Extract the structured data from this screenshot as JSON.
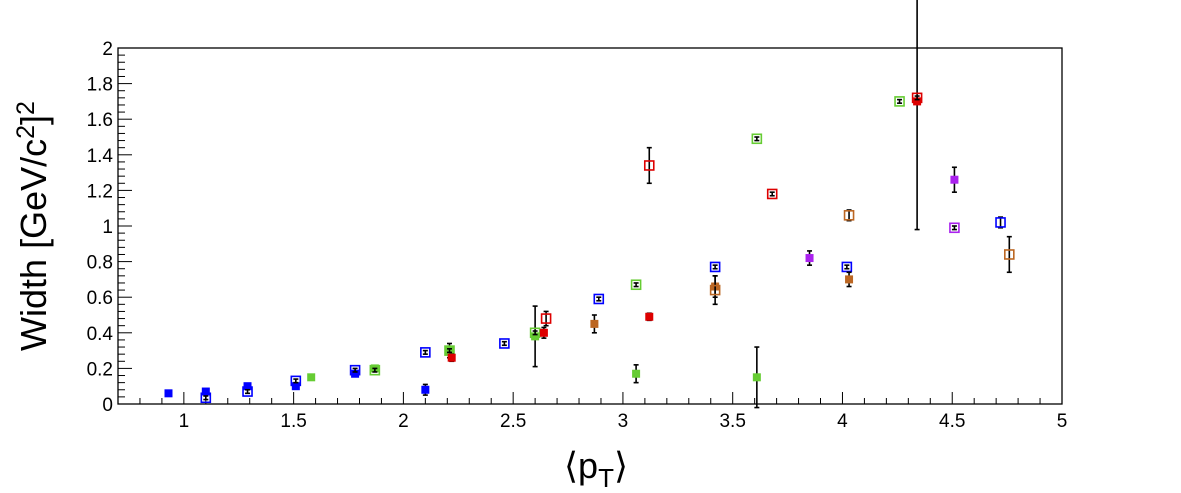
{
  "chart_data": {
    "type": "scatter",
    "xlabel": "⟨p_T⟩",
    "ylabel": "Width [GeV/c^2]^2",
    "xlim": [
      0.7,
      5
    ],
    "ylim": [
      0,
      2
    ],
    "x_ticks": [
      1,
      1.5,
      2,
      2.5,
      3,
      3.5,
      4,
      4.5,
      5
    ],
    "x_tick_labels": [
      "1",
      "1.5",
      "2",
      "2.5",
      "3",
      "3.5",
      "4",
      "4.5",
      "5"
    ],
    "y_ticks": [
      0,
      0.2,
      0.4,
      0.6,
      0.8,
      1,
      1.2,
      1.4,
      1.6,
      1.8,
      2
    ],
    "y_tick_labels": [
      "0",
      "0.2",
      "0.4",
      "0.6",
      "0.8",
      "1",
      "1.2",
      "1.4",
      "1.6",
      "1.8",
      "2"
    ],
    "grid": false,
    "series": [
      {
        "color": "#0000ff",
        "marker": "filled-square",
        "points": [
          {
            "x": 0.93,
            "y": 0.06,
            "err": 0.01
          },
          {
            "x": 1.1,
            "y": 0.07,
            "err": 0.01
          },
          {
            "x": 1.29,
            "y": 0.1,
            "err": 0.01
          },
          {
            "x": 1.51,
            "y": 0.1,
            "err": 0.01
          },
          {
            "x": 1.78,
            "y": 0.17,
            "err": 0.01
          },
          {
            "x": 2.1,
            "y": 0.08,
            "err": 0.03
          }
        ]
      },
      {
        "color": "#0000ff",
        "marker": "open-square",
        "points": [
          {
            "x": 1.1,
            "y": 0.035,
            "err": 0.01
          },
          {
            "x": 1.29,
            "y": 0.07,
            "err": 0.01
          },
          {
            "x": 1.51,
            "y": 0.13,
            "err": 0.01
          },
          {
            "x": 1.78,
            "y": 0.19,
            "err": 0.01
          },
          {
            "x": 2.1,
            "y": 0.29,
            "err": 0.01
          },
          {
            "x": 2.46,
            "y": 0.34,
            "err": 0.01
          },
          {
            "x": 2.89,
            "y": 0.59,
            "err": 0.01
          },
          {
            "x": 3.42,
            "y": 0.77,
            "err": 0.01
          },
          {
            "x": 4.02,
            "y": 0.77,
            "err": 0.01
          },
          {
            "x": 4.72,
            "y": 1.02,
            "err": 0.03
          }
        ]
      },
      {
        "color": "#66cc33",
        "marker": "filled-square",
        "points": [
          {
            "x": 1.58,
            "y": 0.15,
            "err": 0.01
          },
          {
            "x": 1.87,
            "y": 0.2,
            "err": 0.01
          },
          {
            "x": 2.21,
            "y": 0.3,
            "err": 0.04
          },
          {
            "x": 2.6,
            "y": 0.38,
            "err": 0.17
          },
          {
            "x": 3.06,
            "y": 0.17,
            "err": 0.05
          },
          {
            "x": 3.61,
            "y": 0.15,
            "err": 0.17
          }
        ]
      },
      {
        "color": "#66cc33",
        "marker": "open-square",
        "points": [
          {
            "x": 1.87,
            "y": 0.19,
            "err": 0.01
          },
          {
            "x": 2.21,
            "y": 0.3,
            "err": 0.01
          },
          {
            "x": 2.6,
            "y": 0.4,
            "err": 0.01
          },
          {
            "x": 3.06,
            "y": 0.67,
            "err": 0.01
          },
          {
            "x": 3.61,
            "y": 1.49,
            "err": 0.01
          },
          {
            "x": 4.26,
            "y": 1.7,
            "err": 0.01
          }
        ]
      },
      {
        "color": "#dd0000",
        "marker": "filled-square",
        "points": [
          {
            "x": 2.22,
            "y": 0.26,
            "err": 0.02
          },
          {
            "x": 2.64,
            "y": 0.4,
            "err": 0.03
          },
          {
            "x": 3.12,
            "y": 0.49,
            "err": 0.02
          },
          {
            "x": 4.34,
            "y": 1.7,
            "err": 0.72
          }
        ]
      },
      {
        "color": "#dd0000",
        "marker": "open-square",
        "points": [
          {
            "x": 2.65,
            "y": 0.48,
            "err": 0.04
          },
          {
            "x": 3.12,
            "y": 1.34,
            "err": 0.1
          },
          {
            "x": 3.68,
            "y": 1.18,
            "err": 0.01
          },
          {
            "x": 4.34,
            "y": 1.72,
            "err": 0.01
          }
        ]
      },
      {
        "color": "#bb6622",
        "marker": "filled-square",
        "points": [
          {
            "x": 2.87,
            "y": 0.45,
            "err": 0.05
          },
          {
            "x": 3.42,
            "y": 0.66,
            "err": 0.06
          },
          {
            "x": 4.03,
            "y": 0.7,
            "err": 0.04
          }
        ]
      },
      {
        "color": "#bb6622",
        "marker": "open-square",
        "points": [
          {
            "x": 3.42,
            "y": 0.64,
            "err": 0.08
          },
          {
            "x": 4.03,
            "y": 1.06,
            "err": 0.03
          },
          {
            "x": 4.76,
            "y": 0.84,
            "err": 0.1
          }
        ]
      },
      {
        "color": "#aa22ee",
        "marker": "filled-square",
        "points": [
          {
            "x": 3.85,
            "y": 0.82,
            "err": 0.04
          },
          {
            "x": 4.51,
            "y": 1.26,
            "err": 0.07
          }
        ]
      },
      {
        "color": "#aa22ee",
        "marker": "open-square",
        "points": [
          {
            "x": 4.51,
            "y": 0.99,
            "err": 0.01
          }
        ]
      }
    ]
  }
}
